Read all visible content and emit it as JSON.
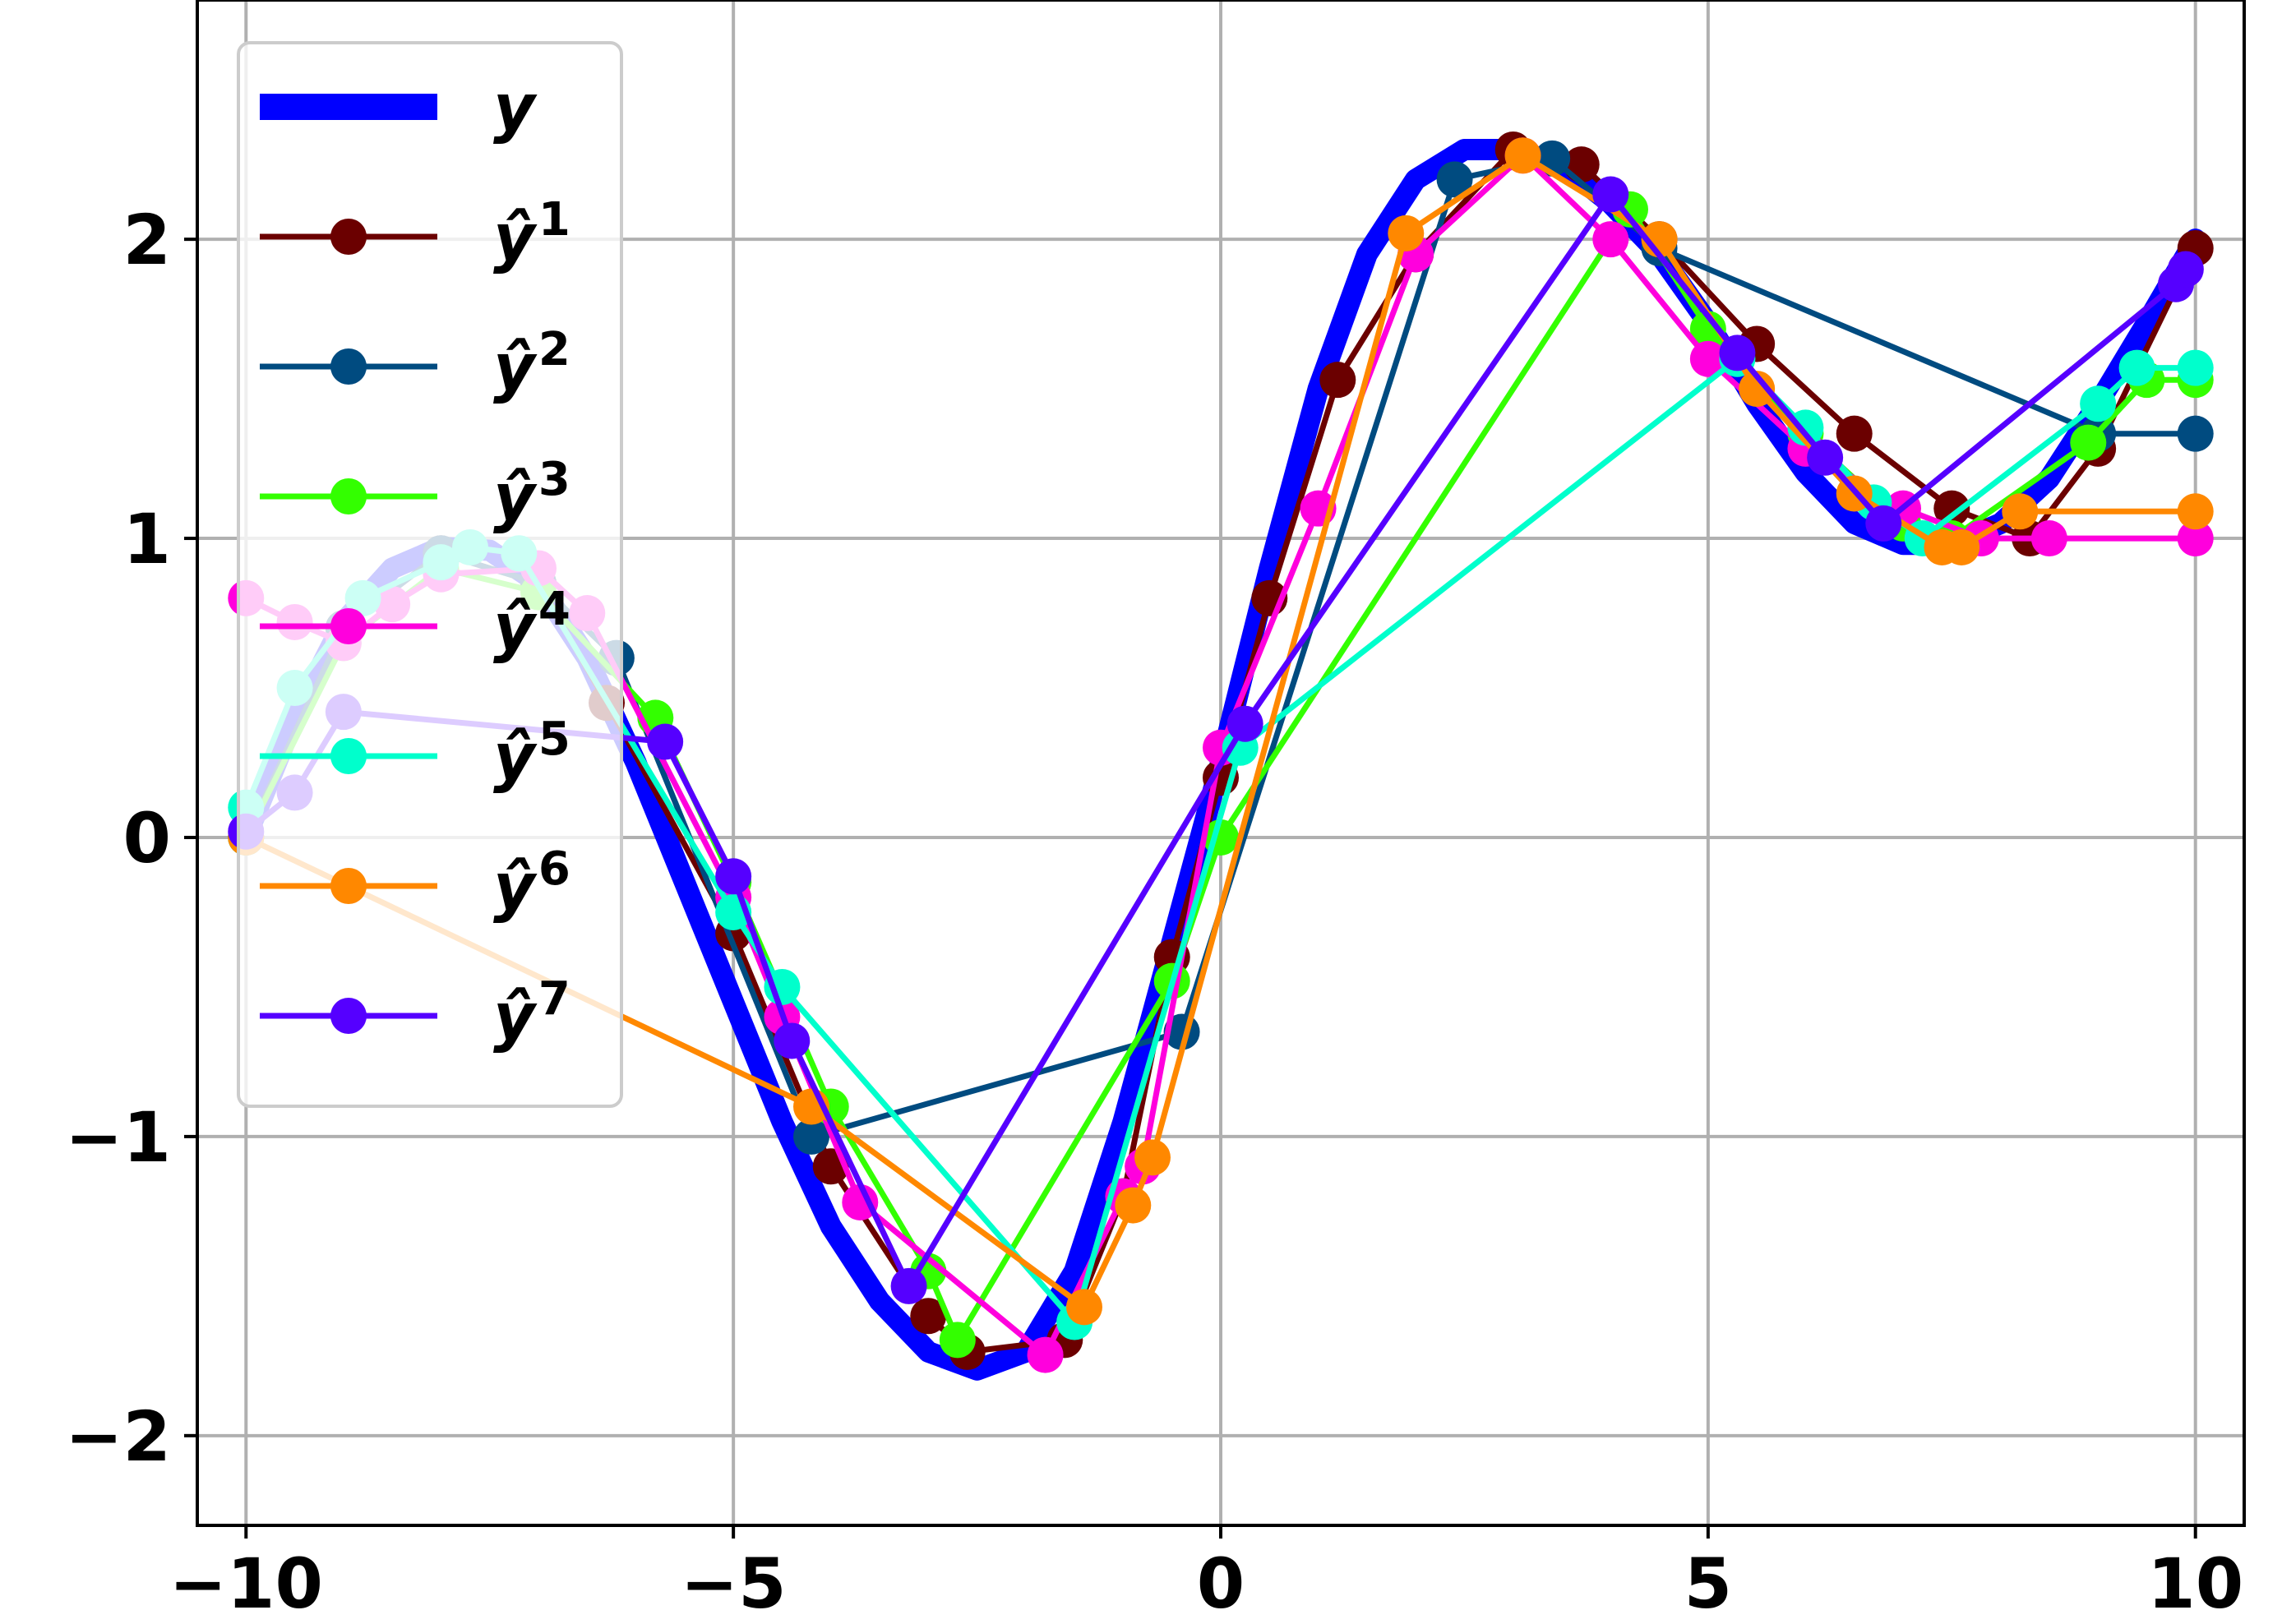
{
  "chart_data": {
    "type": "line",
    "title": "",
    "xlabel": "",
    "ylabel": "",
    "xlim": [
      -10.5,
      10.5
    ],
    "ylim": [
      -2.3,
      2.8
    ],
    "grid": true,
    "legend_position": "upper-left",
    "xticks": [
      -10,
      -5,
      0,
      5,
      10
    ],
    "xtick_labels": [
      "−10",
      "−5",
      "0",
      "5",
      "10"
    ],
    "yticks": [
      -2,
      -1,
      0,
      1,
      2
    ],
    "ytick_labels": [
      "−2",
      "−1",
      "0",
      "1",
      "2"
    ],
    "series": [
      {
        "name": "y",
        "legend_base": "y",
        "legend_sup": "",
        "color": "#0000ff",
        "marker": false,
        "x": [
          -10.0,
          -9.5,
          -9.0,
          -8.5,
          -8.0,
          -7.5,
          -7.0,
          -6.5,
          -6.0,
          -5.5,
          -5.0,
          -4.5,
          -4.0,
          -3.5,
          -3.0,
          -2.5,
          -2.0,
          -1.5,
          -1.0,
          -0.5,
          0.0,
          0.5,
          1.0,
          1.5,
          2.0,
          2.5,
          3.0,
          3.5,
          4.0,
          4.5,
          5.0,
          5.5,
          6.0,
          6.5,
          7.0,
          7.5,
          8.0,
          8.5,
          9.0,
          9.5,
          10.0
        ],
        "y": [
          0.0,
          0.4,
          0.72,
          0.9,
          0.97,
          0.96,
          0.85,
          0.6,
          0.25,
          -0.15,
          -0.55,
          -0.95,
          -1.3,
          -1.55,
          -1.72,
          -1.78,
          -1.72,
          -1.45,
          -0.95,
          -0.35,
          0.25,
          0.9,
          1.5,
          1.95,
          2.2,
          2.3,
          2.3,
          2.25,
          2.12,
          1.95,
          1.72,
          1.45,
          1.22,
          1.05,
          0.98,
          0.98,
          1.05,
          1.2,
          1.45,
          1.72,
          2.0
        ]
      },
      {
        "name": "ŷ¹",
        "legend_base": "ŷ",
        "legend_sup": "1",
        "color": "#6b0000",
        "marker": true,
        "x": [
          -10.0,
          -9.0,
          -8.0,
          -7.0,
          -6.3,
          -5.0,
          -4.0,
          -3.0,
          -2.6,
          -1.6,
          -1.0,
          -0.5,
          0.0,
          0.5,
          1.2,
          2.0,
          3.0,
          3.7,
          4.5,
          5.5,
          6.5,
          7.5,
          8.3,
          9.0,
          10.0
        ],
        "y": [
          0.0,
          0.7,
          0.95,
          0.85,
          0.45,
          -0.32,
          -1.1,
          -1.6,
          -1.72,
          -1.68,
          -1.2,
          -0.4,
          0.2,
          0.8,
          1.53,
          1.95,
          2.3,
          2.25,
          2.0,
          1.65,
          1.35,
          1.1,
          1.0,
          1.3,
          1.97
        ]
      },
      {
        "name": "ŷ²",
        "legend_base": "ŷ",
        "legend_sup": "2",
        "color": "#004b80",
        "marker": true,
        "x": [
          -10.0,
          -9.0,
          -8.0,
          -7.0,
          -6.2,
          -4.2,
          -0.4,
          2.4,
          3.4,
          4.5,
          9.0,
          10.0
        ],
        "y": [
          0.0,
          0.7,
          0.95,
          0.85,
          0.6,
          -1.0,
          -0.65,
          2.2,
          2.27,
          1.97,
          1.35,
          1.35
        ]
      },
      {
        "name": "ŷ³",
        "legend_base": "ŷ",
        "legend_sup": "3",
        "color": "#33ff00",
        "marker": true,
        "x": [
          -10.0,
          -9.0,
          -8.0,
          -7.0,
          -5.8,
          -5.0,
          -4.0,
          -3.0,
          -2.7,
          -0.5,
          0.0,
          4.2,
          5.0,
          6.0,
          7.0,
          7.5,
          8.9,
          9.5,
          10.0
        ],
        "y": [
          0.0,
          0.65,
          0.9,
          0.82,
          0.4,
          -0.15,
          -0.9,
          -1.45,
          -1.68,
          -0.48,
          0.0,
          2.1,
          1.7,
          1.35,
          1.05,
          1.0,
          1.32,
          1.53,
          1.53
        ]
      },
      {
        "name": "ŷ⁴",
        "legend_base": "ŷ",
        "legend_sup": "4",
        "color": "#ff00dd",
        "marker": true,
        "x": [
          -10.0,
          -9.5,
          -9.0,
          -8.5,
          -8.0,
          -7.0,
          -6.5,
          -5.0,
          -4.5,
          -3.7,
          -1.8,
          -1.0,
          -0.8,
          0.0,
          1.0,
          2.0,
          3.1,
          4.0,
          5.0,
          6.0,
          7.0,
          7.8,
          8.5,
          10.0
        ],
        "y": [
          0.8,
          0.72,
          0.65,
          0.78,
          0.88,
          0.9,
          0.75,
          -0.2,
          -0.6,
          -1.22,
          -1.73,
          -1.2,
          -1.1,
          0.3,
          1.1,
          1.95,
          2.28,
          2.0,
          1.6,
          1.3,
          1.1,
          1.0,
          1.0,
          1.0
        ]
      },
      {
        "name": "ŷ⁵",
        "legend_base": "ŷ",
        "legend_sup": "5",
        "color": "#00ffcc",
        "marker": true,
        "x": [
          -10.0,
          -9.5,
          -8.8,
          -8.0,
          -7.7,
          -7.2,
          -5.0,
          -4.5,
          -1.5,
          0.2,
          5.3,
          6.0,
          6.7,
          7.2,
          9.0,
          9.4,
          10.0
        ],
        "y": [
          0.1,
          0.5,
          0.8,
          0.92,
          0.97,
          0.95,
          -0.25,
          -0.5,
          -1.62,
          0.3,
          1.6,
          1.37,
          1.12,
          1.0,
          1.45,
          1.57,
          1.57
        ]
      },
      {
        "name": "ŷ⁶",
        "legend_base": "ŷ",
        "legend_sup": "6",
        "color": "#ff8800",
        "marker": true,
        "x": [
          -10.0,
          -4.2,
          -1.4,
          -0.9,
          -0.7,
          1.9,
          3.1,
          4.5,
          5.5,
          6.5,
          7.4,
          7.6,
          8.2,
          10.0
        ],
        "y": [
          0.0,
          -0.9,
          -1.57,
          -1.23,
          -1.07,
          2.02,
          2.28,
          2.0,
          1.5,
          1.15,
          0.97,
          0.97,
          1.09,
          1.09
        ]
      },
      {
        "name": "ŷ⁷",
        "legend_base": "ŷ",
        "legend_sup": "7",
        "color": "#5500ff",
        "marker": true,
        "x": [
          -10.0,
          -9.5,
          -9.0,
          -5.7,
          -5.0,
          -4.4,
          -3.2,
          0.25,
          4.0,
          5.3,
          6.2,
          6.8,
          9.8,
          9.9
        ],
        "y": [
          0.02,
          0.15,
          0.42,
          0.32,
          -0.13,
          -0.68,
          -1.5,
          0.38,
          2.15,
          1.62,
          1.27,
          1.05,
          1.85,
          1.9
        ]
      }
    ]
  }
}
